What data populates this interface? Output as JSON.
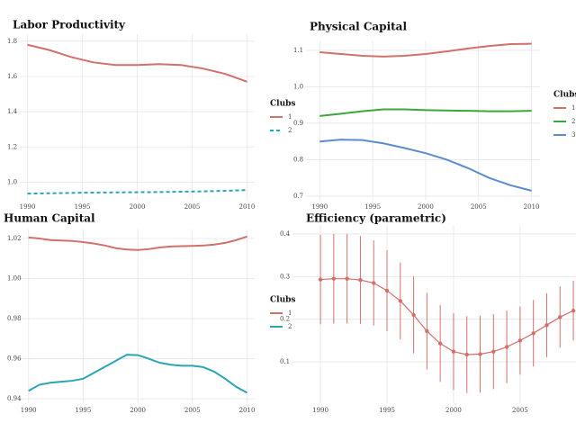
{
  "chart_data": [
    {
      "type": "line",
      "title": "Labor Productivity",
      "legend_title": "Clubs",
      "x": [
        1990,
        1992,
        1994,
        1996,
        1998,
        2000,
        2002,
        2004,
        2006,
        2008,
        2010
      ],
      "series": [
        {
          "name": "1",
          "color": "#d2706a",
          "values": [
            1.78,
            1.75,
            1.71,
            1.68,
            1.665,
            1.665,
            1.67,
            1.665,
            1.645,
            1.615,
            1.57
          ]
        },
        {
          "name": "2",
          "color": "#2aa5b3",
          "dashed": true,
          "values": [
            0.935,
            0.937,
            0.939,
            0.941,
            0.942,
            0.943,
            0.944,
            0.946,
            0.948,
            0.951,
            0.955
          ]
        }
      ],
      "xlim": [
        1989.3,
        2010.7
      ],
      "xticks": [
        1990,
        1995,
        2000,
        2005,
        2010
      ],
      "ylim": [
        0.9,
        1.84
      ],
      "yticks": [
        {
          "value": 1,
          "label": "1.0"
        },
        1.2,
        1.4,
        1.6,
        1.8
      ],
      "grid": true
    },
    {
      "type": "line",
      "title": "Physical Capital",
      "legend_title": "Clubs",
      "x": [
        1990,
        1992,
        1994,
        1996,
        1998,
        2000,
        2002,
        2004,
        2006,
        2008,
        2010
      ],
      "series": [
        {
          "name": "1",
          "color": "#d2706a",
          "values": [
            1.095,
            1.09,
            1.085,
            1.083,
            1.085,
            1.09,
            1.097,
            1.105,
            1.112,
            1.117,
            1.118
          ]
        },
        {
          "name": "2",
          "color": "#3aa83a",
          "values": [
            0.92,
            0.926,
            0.933,
            0.938,
            0.938,
            0.936,
            0.935,
            0.934,
            0.933,
            0.933,
            0.934
          ]
        },
        {
          "name": "3",
          "color": "#5b8bd0",
          "values": [
            0.85,
            0.855,
            0.854,
            0.845,
            0.832,
            0.818,
            0.8,
            0.777,
            0.75,
            0.73,
            0.715
          ]
        }
      ],
      "xlim": [
        1988.7,
        2010.8
      ],
      "xticks": [
        1990,
        1995,
        2000,
        2005,
        2010
      ],
      "ylim": [
        0.69,
        1.127
      ],
      "yticks": [
        0.7,
        0.8,
        0.9,
        {
          "value": 1,
          "label": "1.0"
        },
        1.1
      ],
      "grid": true
    },
    {
      "type": "line",
      "title": "Human Capital",
      "legend_title": "Clubs",
      "x": [
        1990,
        1991,
        1992,
        1993,
        1994,
        1995,
        1996,
        1997,
        1998,
        1999,
        2000,
        2001,
        2002,
        2003,
        2004,
        2005,
        2006,
        2007,
        2008,
        2009,
        2010
      ],
      "series": [
        {
          "name": "1",
          "color": "#d2706a",
          "values": [
            1.0205,
            1.02,
            1.0192,
            1.019,
            1.0188,
            1.0182,
            1.0175,
            1.0165,
            1.0152,
            1.0145,
            1.0143,
            1.0147,
            1.0155,
            1.016,
            1.0162,
            1.0163,
            1.0165,
            1.017,
            1.0178,
            1.0192,
            1.021
          ]
        },
        {
          "name": "2",
          "color": "#2aa5b3",
          "values": [
            0.944,
            0.947,
            0.948,
            0.9485,
            0.949,
            0.95,
            0.953,
            0.956,
            0.959,
            0.962,
            0.9618,
            0.96,
            0.958,
            0.957,
            0.9565,
            0.9565,
            0.9558,
            0.9535,
            0.95,
            0.946,
            0.943
          ]
        }
      ],
      "xlim": [
        1989.2,
        2010.7
      ],
      "xticks": [
        1990,
        1995,
        2000,
        2005,
        2010
      ],
      "ylim": [
        0.9378,
        1.0245
      ],
      "yticks": [
        0.94,
        0.96,
        0.98,
        {
          "value": 1,
          "label": "1.00"
        },
        1.02
      ],
      "grid": true
    },
    {
      "type": "errorbar",
      "title": "Efficiency (parametric)",
      "color": "#d2706a",
      "x": [
        1990,
        1991,
        1992,
        1993,
        1994,
        1995,
        1996,
        1997,
        1998,
        1999,
        2000,
        2001,
        2002,
        2003,
        2004,
        2005,
        2006,
        2007,
        2008,
        2009
      ],
      "values": [
        0.293,
        0.295,
        0.295,
        0.292,
        0.285,
        0.267,
        0.243,
        0.21,
        0.172,
        0.143,
        0.124,
        0.117,
        0.118,
        0.124,
        0.135,
        0.15,
        0.167,
        0.186,
        0.205,
        0.22
      ],
      "errors": [
        0.105,
        0.105,
        0.105,
        0.103,
        0.1,
        0.095,
        0.09,
        0.09,
        0.09,
        0.09,
        0.09,
        0.09,
        0.09,
        0.088,
        0.085,
        0.08,
        0.078,
        0.075,
        0.072,
        0.07
      ],
      "xlim": [
        1987.9,
        2009.2
      ],
      "xticks": [
        1990,
        1995,
        2000,
        2005
      ],
      "ylim": [
        0.003,
        0.421
      ],
      "yticks": [
        0.1,
        0.2,
        0.3,
        0.4
      ],
      "grid": true
    }
  ]
}
